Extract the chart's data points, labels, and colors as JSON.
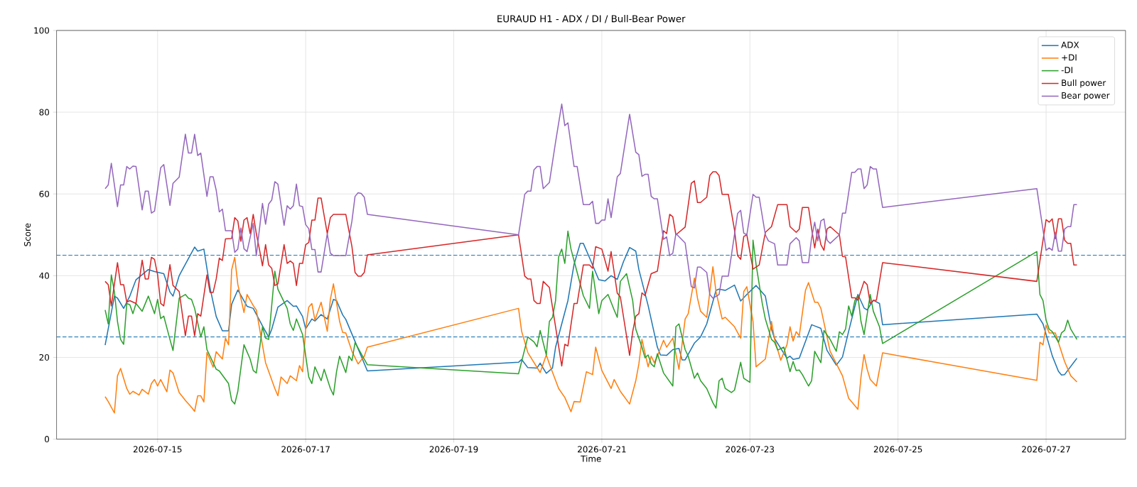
{
  "chart_data": {
    "type": "line",
    "title": "EURAUD H1 - ADX / DI / Bull-Bear Power",
    "xlabel": "Time",
    "ylabel": "Score",
    "xlim": [
      "2026-07-13T15:15",
      "2026-07-28T01:45"
    ],
    "ylim": [
      0,
      100
    ],
    "xticks": [
      "2026-07-15",
      "2026-07-17",
      "2026-07-19",
      "2026-07-21",
      "2026-07-23",
      "2026-07-25",
      "2026-07-27"
    ],
    "yticks": [
      0,
      20,
      40,
      60,
      80,
      100
    ],
    "grid": true,
    "legend": "top right",
    "ref_lines": [
      {
        "axis": "y",
        "value": 45,
        "color": "#1f77b4",
        "line_style": "dashed"
      },
      {
        "axis": "y",
        "value": 25,
        "color": "#1f77b4",
        "line_style": "dashed"
      }
    ],
    "series": [
      {
        "name": "ADX",
        "color": "#1f77b4",
        "x": [
          "2026-07-14T07:00",
          "2026-07-14T08:00",
          "2026-07-14T10:00",
          "2026-07-14T11:00",
          "2026-07-14T13:00",
          "2026-07-14T15:00",
          "2026-07-14T17:00",
          "2026-07-14T21:00",
          "2026-07-14T23:00",
          "2026-07-15T02:00",
          "2026-07-15T04:00",
          "2026-07-15T05:00",
          "2026-07-15T07:00",
          "2026-07-15T12:00",
          "2026-07-15T13:00",
          "2026-07-15T15:00",
          "2026-07-15T17:00",
          "2026-07-15T19:00",
          "2026-07-15T21:00",
          "2026-07-15T23:00",
          "2026-07-16T00:00",
          "2026-07-16T02:00",
          "2026-07-16T05:00",
          "2026-07-16T07:00",
          "2026-07-16T10:00",
          "2026-07-16T12:00",
          "2026-07-16T13:00",
          "2026-07-16T15:00",
          "2026-07-16T18:00",
          "2026-07-16T20:00",
          "2026-07-16T21:00",
          "2026-07-16T23:00",
          "2026-07-17T00:00",
          "2026-07-17T02:00",
          "2026-07-17T03:00",
          "2026-07-17T05:00",
          "2026-07-17T07:00",
          "2026-07-17T09:00",
          "2026-07-17T10:00",
          "2026-07-17T12:00",
          "2026-07-17T13:00",
          "2026-07-17T20:00",
          "2026-07-19T21:00",
          "2026-07-19T22:00",
          "2026-07-20T00:00",
          "2026-07-20T03:00",
          "2026-07-20T04:00",
          "2026-07-20T06:00",
          "2026-07-20T08:00",
          "2026-07-20T09:00",
          "2026-07-20T13:00",
          "2026-07-20T15:00",
          "2026-07-20T17:00",
          "2026-07-20T18:00",
          "2026-07-20T20:00",
          "2026-07-20T23:00",
          "2026-07-21T01:00",
          "2026-07-21T03:00",
          "2026-07-21T05:00",
          "2026-07-21T07:00",
          "2026-07-21T09:00",
          "2026-07-21T11:00",
          "2026-07-21T12:00",
          "2026-07-21T15:00",
          "2026-07-21T18:00",
          "2026-07-21T19:00",
          "2026-07-21T21:00",
          "2026-07-21T23:00",
          "2026-07-22T01:00",
          "2026-07-22T02:00",
          "2026-07-22T03:00",
          "2026-07-22T06:00",
          "2026-07-22T08:00",
          "2026-07-22T10:00",
          "2026-07-22T13:00",
          "2026-07-22T14:00",
          "2026-07-22T16:00",
          "2026-07-22T19:00",
          "2026-07-22T21:00",
          "2026-07-22T23:00",
          "2026-07-23T02:00",
          "2026-07-23T05:00",
          "2026-07-23T07:00",
          "2026-07-23T08:00",
          "2026-07-23T12:00",
          "2026-07-23T13:00",
          "2026-07-23T14:00",
          "2026-07-23T16:00",
          "2026-07-23T20:00",
          "2026-07-23T21:00",
          "2026-07-23T23:00",
          "2026-07-24T01:00",
          "2026-07-24T04:00",
          "2026-07-24T06:00",
          "2026-07-24T08:00",
          "2026-07-24T11:00",
          "2026-07-24T13:00",
          "2026-07-24T14:00",
          "2026-07-24T16:00",
          "2026-07-24T18:00",
          "2026-07-24T19:00",
          "2026-07-26T21:00",
          "2026-07-26T23:00",
          "2026-07-27T02:00",
          "2026-07-27T04:00",
          "2026-07-27T05:00",
          "2026-07-27T06:00",
          "2026-07-27T10:00"
        ],
        "values": [
          23,
          27,
          35,
          34.5,
          32,
          35,
          39,
          41.5,
          41,
          40.5,
          36,
          35,
          40,
          47,
          46,
          46.5,
          37,
          30,
          26.5,
          26.5,
          33,
          36.5,
          32.5,
          32,
          27.7,
          25,
          26.9,
          32.3,
          33.9,
          32.5,
          32.6,
          30,
          27,
          29.4,
          28.9,
          30.5,
          29.4,
          34.2,
          33.9,
          30.4,
          29.3,
          16.7,
          18.8,
          19.5,
          17.5,
          17.4,
          18.6,
          16.1,
          17.4,
          22.5,
          33.9,
          42.8,
          47.9,
          47.9,
          44.4,
          39,
          38.7,
          40,
          39.1,
          43.4,
          46.9,
          46,
          41.5,
          32.7,
          22.5,
          20.6,
          20.5,
          21.9,
          22.2,
          19.4,
          19.4,
          23.5,
          25,
          28.2,
          36.4,
          36.7,
          36.4,
          37.7,
          33.8,
          35.4,
          37.6,
          35,
          26.9,
          24.6,
          19.8,
          20.3,
          19.5,
          19.8,
          28,
          27.7,
          27.1,
          21.7,
          18.1,
          20.1,
          26.4,
          35.4,
          32.1,
          31.6,
          34,
          33.2,
          28,
          30.6,
          28.2,
          20.4,
          16.6,
          15.7,
          15.8,
          19.8
        ]
      },
      {
        "name": "+DI",
        "color": "#ff7f0e",
        "x": [
          "2026-07-14T07:00",
          "2026-07-14T08:00",
          "2026-07-14T10:00",
          "2026-07-14T11:00",
          "2026-07-14T12:00",
          "2026-07-14T14:00",
          "2026-07-14T15:00",
          "2026-07-14T16:00",
          "2026-07-14T18:00",
          "2026-07-14T19:00",
          "2026-07-14T21:00",
          "2026-07-14T22:00",
          "2026-07-14T23:00",
          "2026-07-15T00:00",
          "2026-07-15T01:00",
          "2026-07-15T03:00",
          "2026-07-15T04:00",
          "2026-07-15T05:00",
          "2026-07-15T07:00",
          "2026-07-15T09:00",
          "2026-07-15T11:00",
          "2026-07-15T12:00",
          "2026-07-15T13:00",
          "2026-07-15T14:00",
          "2026-07-15T15:00",
          "2026-07-15T16:00",
          "2026-07-15T18:00",
          "2026-07-15T19:00",
          "2026-07-15T21:00",
          "2026-07-15T22:00",
          "2026-07-15T23:00",
          "2026-07-16T00:00",
          "2026-07-16T01:00",
          "2026-07-16T02:00",
          "2026-07-16T04:00",
          "2026-07-16T05:00",
          "2026-07-16T07:00",
          "2026-07-16T08:00",
          "2026-07-16T11:00",
          "2026-07-16T14:00",
          "2026-07-16T15:00",
          "2026-07-16T16:00",
          "2026-07-16T18:00",
          "2026-07-16T19:00",
          "2026-07-16T21:00",
          "2026-07-16T22:00",
          "2026-07-16T23:00",
          "2026-07-17T00:00",
          "2026-07-17T01:00",
          "2026-07-17T02:00",
          "2026-07-17T03:00",
          "2026-07-17T05:00",
          "2026-07-17T07:00",
          "2026-07-17T08:00",
          "2026-07-17T09:00",
          "2026-07-17T11:00",
          "2026-07-17T12:00",
          "2026-07-17T13:00",
          "2026-07-17T15:00",
          "2026-07-17T17:00",
          "2026-07-17T19:00",
          "2026-07-17T20:00",
          "2026-07-19T21:00",
          "2026-07-19T22:00",
          "2026-07-20T00:00",
          "2026-07-20T04:00",
          "2026-07-20T06:00",
          "2026-07-20T07:00",
          "2026-07-20T10:00",
          "2026-07-20T12:00",
          "2026-07-20T14:00",
          "2026-07-20T15:00",
          "2026-07-20T17:00",
          "2026-07-20T19:00",
          "2026-07-20T21:00",
          "2026-07-20T22:00",
          "2026-07-21T00:00",
          "2026-07-21T03:00",
          "2026-07-21T04:00",
          "2026-07-21T06:00",
          "2026-07-21T09:00",
          "2026-07-21T11:00",
          "2026-07-21T12:00",
          "2026-07-21T13:00",
          "2026-07-21T15:00",
          "2026-07-21T16:00",
          "2026-07-21T17:00",
          "2026-07-21T18:00",
          "2026-07-21T20:00",
          "2026-07-21T21:00",
          "2026-07-21T23:00",
          "2026-07-22T01:00",
          "2026-07-22T03:00",
          "2026-07-22T04:00",
          "2026-07-22T06:00",
          "2026-07-22T07:00",
          "2026-07-22T08:00",
          "2026-07-22T10:00",
          "2026-07-22T12:00",
          "2026-07-22T13:00",
          "2026-07-22T15:00",
          "2026-07-22T16:00",
          "2026-07-22T19:00",
          "2026-07-22T21:00",
          "2026-07-22T22:00",
          "2026-07-22T23:00",
          "2026-07-23T01:00",
          "2026-07-23T02:00",
          "2026-07-23T05:00",
          "2026-07-23T07:00",
          "2026-07-23T08:00",
          "2026-07-23T10:00",
          "2026-07-23T12:00",
          "2026-07-23T13:00",
          "2026-07-23T14:00",
          "2026-07-23T15:00",
          "2026-07-23T16:00",
          "2026-07-23T18:00",
          "2026-07-23T19:00",
          "2026-07-23T21:00",
          "2026-07-23T22:00",
          "2026-07-23T23:00",
          "2026-07-24T02:00",
          "2026-07-24T06:00",
          "2026-07-24T08:00",
          "2026-07-24T11:00",
          "2026-07-24T12:00",
          "2026-07-24T13:00",
          "2026-07-24T14:00",
          "2026-07-24T15:00",
          "2026-07-24T17:00",
          "2026-07-24T19:00",
          "2026-07-26T21:00",
          "2026-07-26T22:00",
          "2026-07-26T23:00",
          "2026-07-27T00:00",
          "2026-07-27T01:00",
          "2026-07-27T03:00",
          "2026-07-27T06:00",
          "2026-07-27T08:00",
          "2026-07-27T10:00"
        ],
        "values": [
          10.4,
          9.2,
          6.4,
          15.5,
          17.3,
          12.4,
          11,
          11.7,
          10.8,
          12.2,
          11,
          13.6,
          14.6,
          13,
          14.6,
          11.6,
          16.9,
          16.2,
          11.4,
          9.5,
          7.8,
          6.8,
          10.6,
          10.6,
          9.1,
          21.2,
          17.6,
          21.4,
          19.6,
          24.7,
          23.1,
          41.4,
          44.5,
          37.9,
          31,
          35.4,
          32.7,
          31.6,
          18.7,
          12.4,
          10.6,
          15.2,
          13.6,
          15.5,
          14.3,
          18,
          16.5,
          26.9,
          32.3,
          33.2,
          29.1,
          33.5,
          26.4,
          34.2,
          38,
          28.8,
          26.1,
          26,
          21.5,
          18.4,
          20.3,
          22.5,
          32,
          26.4,
          21.2,
          16.3,
          20.6,
          18.4,
          12.4,
          10.2,
          6.7,
          9.2,
          9.1,
          16.5,
          15.8,
          22.5,
          16.8,
          12.4,
          14.6,
          11.7,
          8.6,
          14.3,
          18.4,
          24.4,
          17.7,
          20.3,
          18.7,
          20.3,
          24.2,
          22.5,
          24.7,
          17.1,
          29.4,
          30.7,
          39.4,
          34.5,
          31.3,
          29.8,
          42.2,
          36.1,
          29.4,
          29.8,
          27.5,
          24.7,
          36.1,
          37.3,
          28.8,
          17.7,
          19.6,
          28.8,
          24.4,
          19.3,
          23.1,
          27.5,
          24,
          26.3,
          25.3,
          36.4,
          38.3,
          33.5,
          33.5,
          32,
          21.5,
          15.5,
          10,
          7.3,
          15.2,
          20.7,
          17.1,
          14.6,
          13,
          21.1,
          14.4,
          23.7,
          23.1,
          27.9,
          26,
          26,
          19,
          15.5,
          14
        ]
      },
      {
        "name": "-DI",
        "color": "#2ca02c",
        "x": [
          "2026-07-14T07:00",
          "2026-07-14T08:00",
          "2026-07-14T09:00",
          "2026-07-14T10:00",
          "2026-07-14T11:00",
          "2026-07-14T12:00",
          "2026-07-14T13:00",
          "2026-07-14T14:00",
          "2026-07-14T15:00",
          "2026-07-14T16:00",
          "2026-07-14T17:00",
          "2026-07-14T19:00",
          "2026-07-14T21:00",
          "2026-07-14T23:00",
          "2026-07-15T00:00",
          "2026-07-15T01:00",
          "2026-07-15T02:00",
          "2026-07-15T04:00",
          "2026-07-15T05:00",
          "2026-07-15T07:00",
          "2026-07-15T09:00",
          "2026-07-15T10:00",
          "2026-07-15T11:00",
          "2026-07-15T12:00",
          "2026-07-15T14:00",
          "2026-07-15T15:00",
          "2026-07-15T16:00",
          "2026-07-15T18:00",
          "2026-07-15T19:00",
          "2026-07-15T20:00",
          "2026-07-15T23:00",
          "2026-07-16T00:00",
          "2026-07-16T01:00",
          "2026-07-16T02:00",
          "2026-07-16T04:00",
          "2026-07-16T06:00",
          "2026-07-16T07:00",
          "2026-07-16T08:00",
          "2026-07-16T10:00",
          "2026-07-16T11:00",
          "2026-07-16T12:00",
          "2026-07-16T14:00",
          "2026-07-16T15:00",
          "2026-07-16T18:00",
          "2026-07-16T19:00",
          "2026-07-16T20:00",
          "2026-07-16T21:00",
          "2026-07-16T23:00",
          "2026-07-17T01:00",
          "2026-07-17T02:00",
          "2026-07-17T03:00",
          "2026-07-17T05:00",
          "2026-07-17T06:00",
          "2026-07-17T08:00",
          "2026-07-17T09:00",
          "2026-07-17T10:00",
          "2026-07-17T11:00",
          "2026-07-17T13:00",
          "2026-07-17T14:00",
          "2026-07-17T15:00",
          "2026-07-17T16:00",
          "2026-07-17T20:00",
          "2026-07-19T21:00",
          "2026-07-20T00:00",
          "2026-07-20T02:00",
          "2026-07-20T03:00",
          "2026-07-20T04:00",
          "2026-07-20T06:00",
          "2026-07-20T07:00",
          "2026-07-20T08:00",
          "2026-07-20T09:00",
          "2026-07-20T10:00",
          "2026-07-20T11:00",
          "2026-07-20T12:00",
          "2026-07-20T13:00",
          "2026-07-20T14:00",
          "2026-07-20T16:00",
          "2026-07-20T18:00",
          "2026-07-20T20:00",
          "2026-07-20T21:00",
          "2026-07-20T23:00",
          "2026-07-21T00:00",
          "2026-07-21T02:00",
          "2026-07-21T04:00",
          "2026-07-21T05:00",
          "2026-07-21T06:00",
          "2026-07-21T08:00",
          "2026-07-21T10:00",
          "2026-07-21T11:00",
          "2026-07-21T13:00",
          "2026-07-21T14:00",
          "2026-07-21T15:00",
          "2026-07-21T16:00",
          "2026-07-21T17:00",
          "2026-07-21T18:00",
          "2026-07-21T20:00",
          "2026-07-21T23:00",
          "2026-07-22T00:00",
          "2026-07-22T01:00",
          "2026-07-22T03:00",
          "2026-07-22T04:00",
          "2026-07-22T06:00",
          "2026-07-22T07:00",
          "2026-07-22T08:00",
          "2026-07-22T10:00",
          "2026-07-22T12:00",
          "2026-07-22T13:00",
          "2026-07-22T14:00",
          "2026-07-22T15:00",
          "2026-07-22T16:00",
          "2026-07-22T18:00",
          "2026-07-22T19:00",
          "2026-07-22T21:00",
          "2026-07-22T22:00",
          "2026-07-23T00:00",
          "2026-07-23T01:00",
          "2026-07-23T02:00",
          "2026-07-23T04:00",
          "2026-07-23T05:00",
          "2026-07-23T07:00",
          "2026-07-23T08:00",
          "2026-07-23T09:00",
          "2026-07-23T11:00",
          "2026-07-23T13:00",
          "2026-07-23T14:00",
          "2026-07-23T15:00",
          "2026-07-23T16:00",
          "2026-07-23T17:00",
          "2026-07-23T19:00",
          "2026-07-23T20:00",
          "2026-07-23T21:00",
          "2026-07-23T23:00",
          "2026-07-24T00:00",
          "2026-07-24T02:00",
          "2026-07-24T04:00",
          "2026-07-24T05:00",
          "2026-07-24T06:00",
          "2026-07-24T07:00",
          "2026-07-24T08:00",
          "2026-07-24T09:00",
          "2026-07-24T10:00",
          "2026-07-24T11:00",
          "2026-07-24T12:00",
          "2026-07-24T13:00",
          "2026-07-24T15:00",
          "2026-07-24T16:00",
          "2026-07-24T18:00",
          "2026-07-24T19:00",
          "2026-07-26T21:00",
          "2026-07-26T22:00",
          "2026-07-26T23:00",
          "2026-07-27T00:00",
          "2026-07-27T01:00",
          "2026-07-27T02:00",
          "2026-07-27T04:00",
          "2026-07-27T05:00",
          "2026-07-27T06:00",
          "2026-07-27T07:00",
          "2026-07-27T08:00",
          "2026-07-27T10:00"
        ],
        "values": [
          31.6,
          28.2,
          40.2,
          36.1,
          28.8,
          24.4,
          23.2,
          33.2,
          32.9,
          30.7,
          33.2,
          31.3,
          35,
          30.7,
          34.2,
          29.5,
          30.1,
          24.4,
          21.7,
          34.5,
          35.4,
          34.5,
          34.2,
          32,
          25,
          27.5,
          21.9,
          18.7,
          17.1,
          16.7,
          13.6,
          9.5,
          8.6,
          11.7,
          23.1,
          19.6,
          16.8,
          16.2,
          27.5,
          24.7,
          24.4,
          41.1,
          36.7,
          32,
          28.2,
          26.6,
          29.4,
          25.6,
          15.2,
          13.6,
          17.7,
          14.3,
          17.1,
          12.4,
          10.8,
          16.5,
          20.3,
          16.3,
          20.3,
          19.2,
          23.6,
          18.2,
          16,
          25,
          23.8,
          22.6,
          26.6,
          20.6,
          28.8,
          29.8,
          33.9,
          44.6,
          46.5,
          43,
          50.9,
          46.5,
          40.8,
          35.1,
          32,
          41.1,
          30.7,
          33.9,
          35.4,
          31.6,
          29.8,
          38.6,
          40.5,
          33.9,
          26.9,
          22.5,
          19.9,
          20.6,
          18.4,
          17.7,
          20.9,
          16.2,
          13,
          27.5,
          28.2,
          21.9,
          20.3,
          14.9,
          16.2,
          14.3,
          12.4,
          8.9,
          7.6,
          14.3,
          14.9,
          12.4,
          11.4,
          12,
          18.8,
          14.9,
          13.9,
          48.7,
          42.7,
          33.2,
          29.4,
          24.4,
          23.7,
          21.8,
          22.5,
          16.5,
          19,
          16.8,
          16.9,
          15.8,
          13,
          14.3,
          21.5,
          18.7,
          26.6,
          24.4,
          21.5,
          26.3,
          25.6,
          26.9,
          32.6,
          30.1,
          33.9,
          35.1,
          28.8,
          25.6,
          35.4,
          31.3,
          27.5,
          23.4,
          45.9,
          35.4,
          33.9,
          29.1,
          26.9,
          26.3,
          23.7,
          26,
          26.6,
          29.1,
          26.9,
          24.4
        ]
      },
      {
        "name": "Bull power",
        "color": "#d62728",
        "x": [
          "2026-07-14T07:00",
          "2026-07-14T08:00",
          "2026-07-14T09:00",
          "2026-07-14T11:00",
          "2026-07-14T12:00",
          "2026-07-14T13:00",
          "2026-07-14T14:00",
          "2026-07-14T15:00",
          "2026-07-14T17:00",
          "2026-07-14T19:00",
          "2026-07-14T20:00",
          "2026-07-14T21:00",
          "2026-07-14T22:00",
          "2026-07-14T23:00",
          "2026-07-15T00:00",
          "2026-07-15T01:00",
          "2026-07-15T02:00",
          "2026-07-15T04:00",
          "2026-07-15T05:00",
          "2026-07-15T07:00",
          "2026-07-15T09:00",
          "2026-07-15T10:00",
          "2026-07-15T11:00",
          "2026-07-15T12:00",
          "2026-07-15T13:00",
          "2026-07-15T14:00",
          "2026-07-15T16:00",
          "2026-07-15T17:00",
          "2026-07-15T18:00",
          "2026-07-15T19:00",
          "2026-07-15T20:00",
          "2026-07-15T21:00",
          "2026-07-15T22:00",
          "2026-07-16T00:00",
          "2026-07-16T01:00",
          "2026-07-16T02:00",
          "2026-07-16T03:00",
          "2026-07-16T04:00",
          "2026-07-16T05:00",
          "2026-07-16T06:00",
          "2026-07-16T07:00",
          "2026-07-16T08:00",
          "2026-07-16T09:00",
          "2026-07-16T10:00",
          "2026-07-16T11:00",
          "2026-07-16T12:00",
          "2026-07-16T13:00",
          "2026-07-16T14:00",
          "2026-07-16T15:00",
          "2026-07-16T17:00",
          "2026-07-16T18:00",
          "2026-07-16T19:00",
          "2026-07-16T20:00",
          "2026-07-16T21:00",
          "2026-07-16T22:00",
          "2026-07-16T23:00",
          "2026-07-17T00:00",
          "2026-07-17T01:00",
          "2026-07-17T02:00",
          "2026-07-17T03:00",
          "2026-07-17T04:00",
          "2026-07-17T05:00",
          "2026-07-17T07:00",
          "2026-07-17T08:00",
          "2026-07-17T09:00",
          "2026-07-17T13:00",
          "2026-07-17T15:00",
          "2026-07-17T16:00",
          "2026-07-17T17:00",
          "2026-07-17T18:00",
          "2026-07-17T19:00",
          "2026-07-17T20:00",
          "2026-07-19T21:00",
          "2026-07-19T23:00",
          "2026-07-20T00:00",
          "2026-07-20T01:00",
          "2026-07-20T02:00",
          "2026-07-20T03:00",
          "2026-07-20T04:00",
          "2026-07-20T05:00",
          "2026-07-20T07:00",
          "2026-07-20T11:00",
          "2026-07-20T12:00",
          "2026-07-20T13:00",
          "2026-07-20T15:00",
          "2026-07-20T16:00",
          "2026-07-20T18:00",
          "2026-07-20T20:00",
          "2026-07-20T21:00",
          "2026-07-20T22:00",
          "2026-07-20T23:00",
          "2026-07-21T00:00",
          "2026-07-21T02:00",
          "2026-07-21T03:00",
          "2026-07-21T05:00",
          "2026-07-21T06:00",
          "2026-07-21T09:00",
          "2026-07-21T10:00",
          "2026-07-21T11:00",
          "2026-07-21T12:00",
          "2026-07-21T13:00",
          "2026-07-21T14:00",
          "2026-07-21T16:00",
          "2026-07-21T18:00",
          "2026-07-21T20:00",
          "2026-07-21T21:00",
          "2026-07-21T22:00",
          "2026-07-21T23:00",
          "2026-07-22T00:00",
          "2026-07-22T03:00",
          "2026-07-22T05:00",
          "2026-07-22T06:00",
          "2026-07-22T07:00",
          "2026-07-22T08:00",
          "2026-07-22T10:00",
          "2026-07-22T11:00",
          "2026-07-22T12:00",
          "2026-07-22T13:00",
          "2026-07-22T14:00",
          "2026-07-22T15:00",
          "2026-07-22T17:00",
          "2026-07-22T19:00",
          "2026-07-22T20:00",
          "2026-07-22T21:00",
          "2026-07-22T22:00",
          "2026-07-22T23:00",
          "2026-07-23T01:00",
          "2026-07-23T02:00",
          "2026-07-23T03:00",
          "2026-07-23T05:00",
          "2026-07-23T07:00",
          "2026-07-23T09:00",
          "2026-07-23T12:00",
          "2026-07-23T13:00",
          "2026-07-23T15:00",
          "2026-07-23T16:00",
          "2026-07-23T17:00",
          "2026-07-23T19:00",
          "2026-07-23T20:00",
          "2026-07-23T21:00",
          "2026-07-23T22:00",
          "2026-07-23T23:00",
          "2026-07-24T00:00",
          "2026-07-24T01:00",
          "2026-07-24T02:00",
          "2026-07-24T05:00",
          "2026-07-24T06:00",
          "2026-07-24T07:00",
          "2026-07-24T09:00",
          "2026-07-24T10:00",
          "2026-07-24T11:00",
          "2026-07-24T13:00",
          "2026-07-24T14:00",
          "2026-07-24T15:00",
          "2026-07-24T16:00",
          "2026-07-24T17:00",
          "2026-07-24T19:00",
          "2026-07-26T21:00",
          "2026-07-27T00:00",
          "2026-07-27T01:00",
          "2026-07-27T02:00",
          "2026-07-27T03:00",
          "2026-07-27T04:00",
          "2026-07-27T05:00",
          "2026-07-27T06:00",
          "2026-07-27T07:00",
          "2026-07-27T08:00",
          "2026-07-27T09:00",
          "2026-07-27T10:00"
        ],
        "values": [
          38.6,
          37.8,
          32.6,
          43.2,
          37.8,
          37.8,
          33.5,
          33.9,
          33.2,
          43.8,
          39.2,
          39.2,
          44.5,
          44,
          40.2,
          33.2,
          32.6,
          42.7,
          37.6,
          36.1,
          25.3,
          30.1,
          30.1,
          25.3,
          30.7,
          30.1,
          40.2,
          35.9,
          35.9,
          39.2,
          44.3,
          43.7,
          49,
          49.1,
          54.2,
          53.4,
          48.4,
          53.6,
          54.2,
          50.3,
          55,
          50.3,
          46.5,
          42.4,
          47.6,
          42.6,
          41.8,
          37.6,
          38,
          47.6,
          43,
          43.6,
          43,
          37.6,
          43,
          43,
          47.6,
          48.1,
          53.6,
          53.6,
          59,
          59,
          50.3,
          54.2,
          55,
          55,
          47.1,
          40.8,
          39.9,
          39.9,
          40.8,
          45.1,
          50,
          39.9,
          39.2,
          39.2,
          33.9,
          33.2,
          33.2,
          38.6,
          37.1,
          17.9,
          23.2,
          22.8,
          33.2,
          33.2,
          42.6,
          42.6,
          41.8,
          47.1,
          46.8,
          46.5,
          41.1,
          45.9,
          35.7,
          34.8,
          20.5,
          26.3,
          30.1,
          30.7,
          35.8,
          35.1,
          40.5,
          41.1,
          51,
          50.3,
          55,
          54.4,
          50,
          51.9,
          62.6,
          63.2,
          57.9,
          57.9,
          59.2,
          64.5,
          65.4,
          65.4,
          64.5,
          59.9,
          59.9,
          51.2,
          44.9,
          44,
          49.6,
          50,
          41.6,
          42.1,
          42.6,
          50.6,
          52,
          57.4,
          57.4,
          52,
          50.6,
          51.4,
          56.7,
          56.7,
          51.5,
          46.8,
          51.4,
          47.6,
          46.2,
          51.4,
          52,
          50,
          44.7,
          44.6,
          34.6,
          34.6,
          34,
          38.6,
          37.8,
          33.2,
          33.9,
          34,
          43.2,
          38.6,
          53.7,
          53.1,
          53.9,
          49,
          53.9,
          53.9,
          48.7,
          47.9,
          47.9,
          42.6,
          42.6
        ]
      },
      {
        "name": "Bear power",
        "color": "#9467bd",
        "x": [
          "2026-07-14T07:00",
          "2026-07-14T08:00",
          "2026-07-14T09:00",
          "2026-07-14T11:00",
          "2026-07-14T12:00",
          "2026-07-14T13:00",
          "2026-07-14T14:00",
          "2026-07-14T15:00",
          "2026-07-14T16:00",
          "2026-07-14T17:00",
          "2026-07-14T19:00",
          "2026-07-14T20:00",
          "2026-07-14T21:00",
          "2026-07-14T22:00",
          "2026-07-14T23:00",
          "2026-07-15T01:00",
          "2026-07-15T02:00",
          "2026-07-15T04:00",
          "2026-07-15T05:00",
          "2026-07-15T07:00",
          "2026-07-15T09:00",
          "2026-07-15T10:00",
          "2026-07-15T11:00",
          "2026-07-15T12:00",
          "2026-07-15T13:00",
          "2026-07-15T14:00",
          "2026-07-15T16:00",
          "2026-07-15T17:00",
          "2026-07-15T18:00",
          "2026-07-15T19:00",
          "2026-07-15T20:00",
          "2026-07-15T21:00",
          "2026-07-15T22:00",
          "2026-07-16T00:00",
          "2026-07-16T01:00",
          "2026-07-16T02:00",
          "2026-07-16T03:00",
          "2026-07-16T04:00",
          "2026-07-16T05:00",
          "2026-07-16T07:00",
          "2026-07-16T08:00",
          "2026-07-16T10:00",
          "2026-07-16T11:00",
          "2026-07-16T12:00",
          "2026-07-16T13:00",
          "2026-07-16T14:00",
          "2026-07-16T15:00",
          "2026-07-16T17:00",
          "2026-07-16T18:00",
          "2026-07-16T19:00",
          "2026-07-16T20:00",
          "2026-07-16T21:00",
          "2026-07-16T22:00",
          "2026-07-16T23:00",
          "2026-07-17T00:00",
          "2026-07-17T01:00",
          "2026-07-17T02:00",
          "2026-07-17T03:00",
          "2026-07-17T04:00",
          "2026-07-17T05:00",
          "2026-07-17T07:00",
          "2026-07-17T08:00",
          "2026-07-17T09:00",
          "2026-07-17T13:00",
          "2026-07-17T15:00",
          "2026-07-17T16:00",
          "2026-07-17T17:00",
          "2026-07-17T18:00",
          "2026-07-17T19:00",
          "2026-07-17T20:00",
          "2026-07-19T21:00",
          "2026-07-19T23:00",
          "2026-07-20T00:00",
          "2026-07-20T01:00",
          "2026-07-20T02:00",
          "2026-07-20T03:00",
          "2026-07-20T04:00",
          "2026-07-20T05:00",
          "2026-07-20T07:00",
          "2026-07-20T09:00",
          "2026-07-20T11:00",
          "2026-07-20T12:00",
          "2026-07-20T13:00",
          "2026-07-20T15:00",
          "2026-07-20T16:00",
          "2026-07-20T18:00",
          "2026-07-20T20:00",
          "2026-07-20T21:00",
          "2026-07-20T22:00",
          "2026-07-20T23:00",
          "2026-07-21T00:00",
          "2026-07-21T01:00",
          "2026-07-21T02:00",
          "2026-07-21T03:00",
          "2026-07-21T05:00",
          "2026-07-21T06:00",
          "2026-07-21T09:00",
          "2026-07-21T11:00",
          "2026-07-21T12:00",
          "2026-07-21T13:00",
          "2026-07-21T14:00",
          "2026-07-21T15:00",
          "2026-07-21T16:00",
          "2026-07-21T17:00",
          "2026-07-21T18:00",
          "2026-07-21T20:00",
          "2026-07-21T21:00",
          "2026-07-21T22:00",
          "2026-07-21T23:00",
          "2026-07-22T00:00",
          "2026-07-22T03:00",
          "2026-07-22T05:00",
          "2026-07-22T06:00",
          "2026-07-22T07:00",
          "2026-07-22T08:00",
          "2026-07-22T10:00",
          "2026-07-22T11:00",
          "2026-07-22T12:00",
          "2026-07-22T14:00",
          "2026-07-22T15:00",
          "2026-07-22T17:00",
          "2026-07-22T20:00",
          "2026-07-22T21:00",
          "2026-07-22T22:00",
          "2026-07-22T23:00",
          "2026-07-23T01:00",
          "2026-07-23T02:00",
          "2026-07-23T03:00",
          "2026-07-23T05:00",
          "2026-07-23T06:00",
          "2026-07-23T08:00",
          "2026-07-23T09:00",
          "2026-07-23T12:00",
          "2026-07-23T13:00",
          "2026-07-23T15:00",
          "2026-07-23T16:00",
          "2026-07-23T17:00",
          "2026-07-23T19:00",
          "2026-07-23T20:00",
          "2026-07-23T21:00",
          "2026-07-23T22:00",
          "2026-07-23T23:00",
          "2026-07-24T00:00",
          "2026-07-24T01:00",
          "2026-07-24T02:00",
          "2026-07-24T05:00",
          "2026-07-24T06:00",
          "2026-07-24T07:00",
          "2026-07-24T09:00",
          "2026-07-24T10:00",
          "2026-07-24T11:00",
          "2026-07-24T12:00",
          "2026-07-24T13:00",
          "2026-07-24T14:00",
          "2026-07-24T15:00",
          "2026-07-24T16:00",
          "2026-07-24T17:00",
          "2026-07-24T19:00",
          "2026-07-26T21:00",
          "2026-07-27T00:00",
          "2026-07-27T01:00",
          "2026-07-27T02:00",
          "2026-07-27T03:00",
          "2026-07-27T04:00",
          "2026-07-27T05:00",
          "2026-07-27T06:00",
          "2026-07-27T07:00",
          "2026-07-27T08:00",
          "2026-07-27T09:00",
          "2026-07-27T10:00"
        ],
        "values": [
          61.3,
          62.2,
          67.5,
          56.9,
          62.2,
          62.2,
          66.7,
          66.1,
          66.8,
          66.7,
          56.1,
          60.7,
          60.7,
          55.3,
          55.8,
          66.4,
          67.2,
          57.2,
          62.6,
          64.1,
          74.6,
          70,
          70,
          74.6,
          69.4,
          70,
          59.4,
          64.2,
          64.2,
          60.9,
          55.6,
          56.3,
          51,
          51,
          45.7,
          46.5,
          51.7,
          46.6,
          45.9,
          52.8,
          44.9,
          57.7,
          52.6,
          57.5,
          58.5,
          63,
          62.4,
          52.3,
          57.1,
          56.3,
          57.1,
          62.4,
          57.1,
          56.9,
          52.5,
          51.5,
          46.4,
          46.4,
          40.9,
          40.9,
          50.3,
          45.5,
          44.9,
          44.9,
          53.4,
          59.4,
          60.3,
          60.1,
          59.2,
          55,
          50,
          59.9,
          60.7,
          60.7,
          65.9,
          66.7,
          66.7,
          61.3,
          62.8,
          72.7,
          82,
          76.7,
          77.4,
          66.7,
          66.7,
          57.4,
          57.4,
          58.2,
          52.8,
          52.8,
          53.6,
          53.6,
          58.8,
          54.2,
          64.2,
          65,
          79.5,
          70.2,
          69.6,
          64.3,
          64.8,
          64.8,
          59.4,
          58.8,
          58.8,
          48.9,
          49.5,
          44.9,
          45.5,
          50.3,
          48,
          37.3,
          37,
          42.1,
          42.1,
          40.8,
          35.4,
          34.5,
          35.4,
          39.9,
          39.9,
          55.2,
          56,
          50.4,
          50,
          59.9,
          59.2,
          59.2,
          50,
          48.5,
          47.8,
          42.6,
          42.6,
          47.8,
          49.3,
          48.5,
          43.2,
          43.2,
          49.3,
          53.1,
          48.5,
          53.4,
          53.9,
          48.7,
          47.9,
          50,
          55.3,
          55.3,
          65.3,
          65.3,
          66.1,
          66.1,
          61.3,
          62.2,
          66.7,
          66.1,
          66.1,
          56.7,
          61.3,
          46.2,
          46.8,
          46.2,
          50.6,
          46,
          46,
          51.4,
          52,
          52,
          57.4,
          57.4
        ]
      }
    ]
  }
}
